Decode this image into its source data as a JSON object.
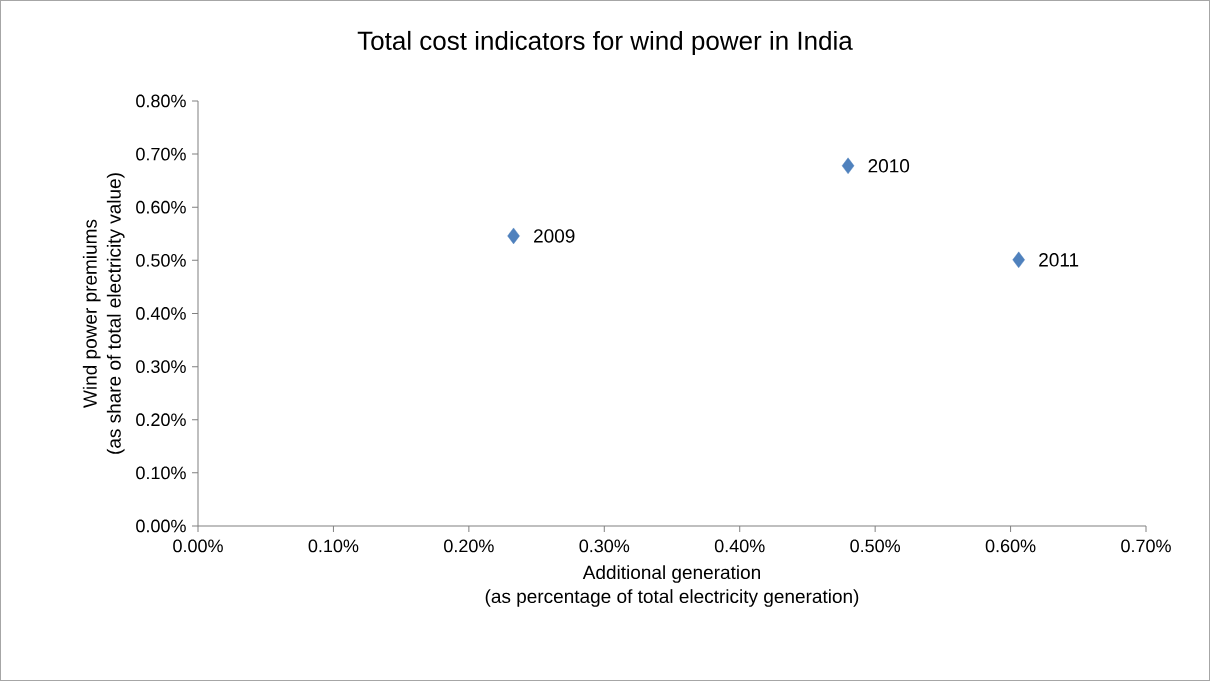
{
  "chart_data": {
    "type": "scatter",
    "title": "Total cost indicators for wind power in India",
    "xlabel": "Additional generation\n(as percentage of total electricity generation)",
    "ylabel": "Wind power premiums\n(as share of total electricity value)",
    "x": [
      0.233,
      0.48,
      0.606
    ],
    "values": [
      0.546,
      0.678,
      0.501
    ],
    "color": "#4f81bd",
    "marker": "diamond",
    "xlim": [
      0,
      0.7
    ],
    "xticks": [
      {
        "value": 0,
        "label": "0.00%"
      },
      {
        "value": 0.1,
        "label": "0.10%"
      },
      {
        "value": 0.2,
        "label": "0.20%"
      },
      {
        "value": 0.3,
        "label": "0.30%"
      },
      {
        "value": 0.4,
        "label": "0.40%"
      },
      {
        "value": 0.5,
        "label": "0.50%"
      },
      {
        "value": 0.6,
        "label": "0.60%"
      },
      {
        "value": 0.7,
        "label": "0.70%"
      }
    ],
    "ylim": [
      0,
      0.8
    ],
    "yticks": [
      {
        "value": 0,
        "label": "0.00%"
      },
      {
        "value": 0.1,
        "label": "0.10%"
      },
      {
        "value": 0.2,
        "label": "0.20%"
      },
      {
        "value": 0.3,
        "label": "0.30%"
      },
      {
        "value": 0.4,
        "label": "0.40%"
      },
      {
        "value": 0.5,
        "label": "0.50%"
      },
      {
        "value": 0.6,
        "label": "0.60%"
      },
      {
        "value": 0.7,
        "label": "0.70%"
      },
      {
        "value": 0.8,
        "label": "0.80%"
      }
    ],
    "annotations": [
      {
        "text": "2009",
        "x": 0.233,
        "y": 0.546
      },
      {
        "text": "2010",
        "x": 0.48,
        "y": 0.678
      },
      {
        "text": "2011",
        "x": 0.606,
        "y": 0.501
      }
    ]
  }
}
